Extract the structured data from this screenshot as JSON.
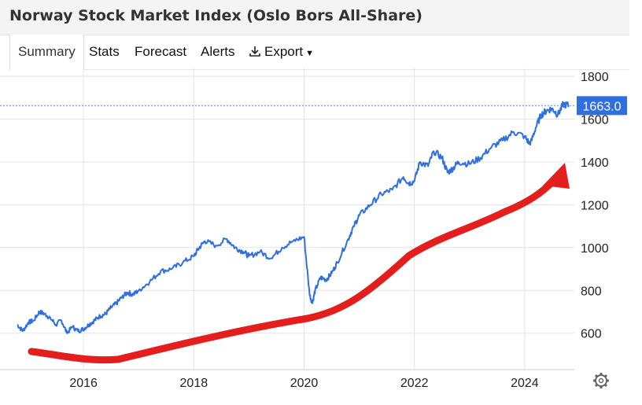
{
  "title": "Norway Stock Market Index (Oslo Bors All-Share)",
  "tabs": [
    {
      "label": "Summary",
      "active": true
    },
    {
      "label": "Stats",
      "active": false
    },
    {
      "label": "Forecast",
      "active": false
    },
    {
      "label": "Alerts",
      "active": false
    }
  ],
  "export": {
    "label": "Export",
    "icon": "download-icon",
    "caret": "chevron-down-icon"
  },
  "settings": {
    "icon": "gear-icon"
  },
  "colors": {
    "line": "#2f6fe0",
    "last_price_bg": "#2f6fe0",
    "last_price_line": "#5b8fe6",
    "arrow": "#e41d1d",
    "grid": "#e3e3e3"
  },
  "chart_data": {
    "type": "line",
    "title": "",
    "xlabel": "",
    "ylabel": "",
    "xlim": [
      2014.8,
      2024.9
    ],
    "ylim": [
      430,
      1800
    ],
    "x_ticks": [
      2016,
      2018,
      2020,
      2022,
      2024
    ],
    "y_ticks": [
      600,
      800,
      1000,
      1200,
      1400,
      1600,
      1800
    ],
    "grid": true,
    "y_axis_position": "right",
    "last_value": 1663.0,
    "last_value_label": "1663.0",
    "series": [
      {
        "x": [
          2014.8,
          2014.9,
          2015.0,
          2015.1,
          2015.2,
          2015.3,
          2015.4,
          2015.5,
          2015.6,
          2015.7,
          2015.8,
          2015.9,
          2016.0,
          2016.1,
          2016.2,
          2016.3,
          2016.4,
          2016.5,
          2016.6,
          2016.7,
          2016.8,
          2016.9,
          2017.0,
          2017.2,
          2017.4,
          2017.6,
          2017.8,
          2018.0,
          2018.1,
          2018.2,
          2018.4,
          2018.6,
          2018.75,
          2018.9,
          2019.0,
          2019.2,
          2019.4,
          2019.6,
          2019.8,
          2020.0,
          2020.1,
          2020.15,
          2020.2,
          2020.3,
          2020.4,
          2020.5,
          2020.6,
          2020.8,
          2020.9,
          2021.0,
          2021.2,
          2021.4,
          2021.6,
          2021.8,
          2021.9,
          2022.0,
          2022.1,
          2022.25,
          2022.35,
          2022.5,
          2022.6,
          2022.7,
          2022.8,
          2023.0,
          2023.2,
          2023.4,
          2023.6,
          2023.8,
          2024.0,
          2024.1,
          2024.2,
          2024.3,
          2024.4,
          2024.5,
          2024.6,
          2024.7,
          2024.8
        ],
        "y": [
          640,
          610,
          650,
          660,
          700,
          690,
          670,
          640,
          660,
          600,
          630,
          610,
          620,
          640,
          660,
          680,
          690,
          720,
          740,
          770,
          790,
          780,
          800,
          840,
          890,
          900,
          930,
          960,
          1000,
          1030,
          1010,
          1040,
          1000,
          980,
          960,
          980,
          950,
          1000,
          1030,
          1050,
          780,
          740,
          800,
          860,
          850,
          880,
          930,
          1040,
          1100,
          1150,
          1200,
          1250,
          1270,
          1330,
          1300,
          1310,
          1400,
          1380,
          1450,
          1420,
          1350,
          1370,
          1400,
          1390,
          1420,
          1470,
          1500,
          1540,
          1520,
          1480,
          1560,
          1620,
          1640,
          1650,
          1620,
          1670,
          1663
        ]
      }
    ]
  }
}
